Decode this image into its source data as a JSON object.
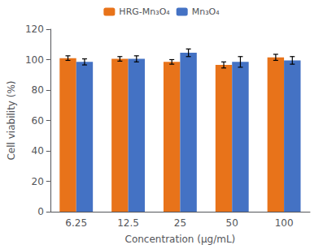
{
  "chart_data": {
    "type": "bar",
    "xlabel": "Concentration (μg/mL)",
    "ylabel": "Cell viability (%)",
    "categories": [
      "6.25",
      "12.5",
      "25",
      "50",
      "100"
    ],
    "series": [
      {
        "name": "HRG-Mn₃O₄",
        "color": "#E8731A",
        "values": [
          101.0,
          100.5,
          98.5,
          96.5,
          101.5
        ],
        "errors": [
          1.5,
          1.5,
          1.5,
          2.0,
          2.0
        ]
      },
      {
        "name": "Mn₃O₄",
        "color": "#4472C4",
        "values": [
          98.5,
          100.5,
          104.5,
          98.5,
          99.5
        ],
        "errors": [
          2.0,
          2.0,
          2.5,
          3.5,
          2.5
        ]
      }
    ],
    "ylim": [
      0,
      120
    ],
    "yticks": [
      0,
      20,
      40,
      60,
      80,
      100,
      120
    ],
    "grid": false,
    "legend": "top"
  }
}
